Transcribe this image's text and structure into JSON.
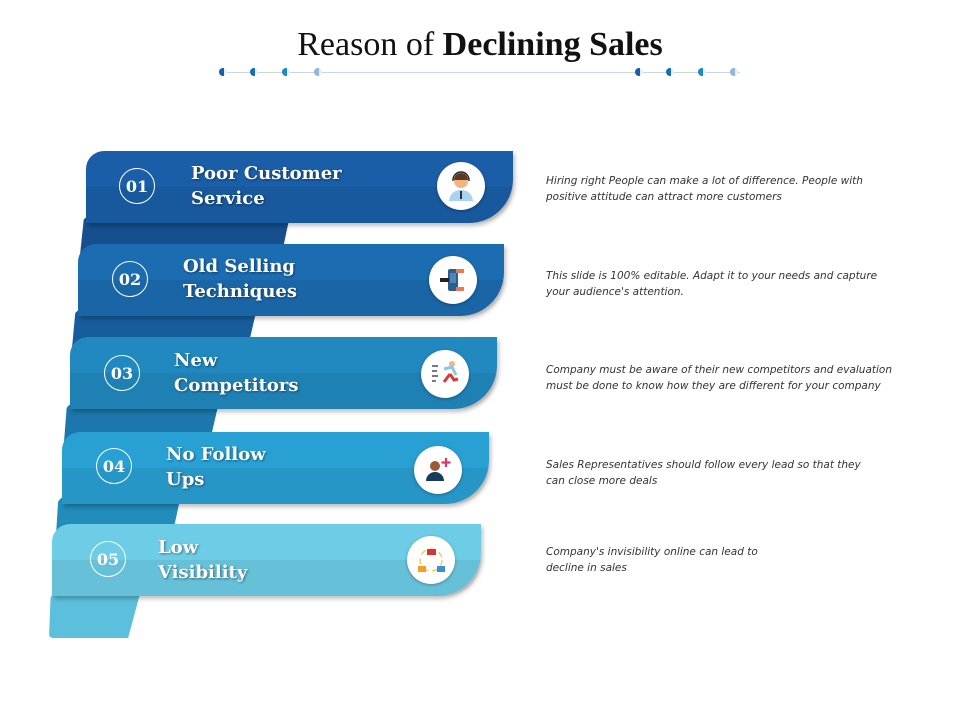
{
  "title": {
    "regular": "Reason of ",
    "bold": "Declining Sales"
  },
  "colors": {
    "band1": "#1a5ea7",
    "band2": "#1c6cb1",
    "band3": "#2188c0",
    "band4": "#29a0d4",
    "band5": "#6dcde6"
  },
  "items": [
    {
      "number": "01",
      "title_line1": "Poor Customer",
      "title_line2": "Service",
      "icon": "customer-service-agent-icon",
      "desc_line1": "Hiring right People can make a lot of difference. People with",
      "desc_line2": "positive attitude  can attract  more customers"
    },
    {
      "number": "02",
      "title_line1": "Old Selling",
      "title_line2": "Techniques",
      "icon": "hands-exchanging-money-icon",
      "desc_line1": "This slide is 100% editable. Adapt it to your needs and capture",
      "desc_line2": "your audience's attention."
    },
    {
      "number": "03",
      "title_line1": "New",
      "title_line2": "Competitors",
      "icon": "running-competitor-icon",
      "desc_line1": "Company must be aware of their new competitors  and evaluation",
      "desc_line2": "must be done to know  how they are different for your company"
    },
    {
      "number": "04",
      "title_line1": "No Follow",
      "title_line2": "Ups",
      "icon": "add-user-icon",
      "desc_line1": "Sales Representatives  should follow every lead so that they",
      "desc_line2": "can close more  deals"
    },
    {
      "number": "05",
      "title_line1": "Low",
      "title_line2": "Visibility",
      "icon": "network-cycle-icon",
      "desc_line1": "Company's invisibility online can lead to",
      "desc_line2": "decline in sales"
    }
  ]
}
